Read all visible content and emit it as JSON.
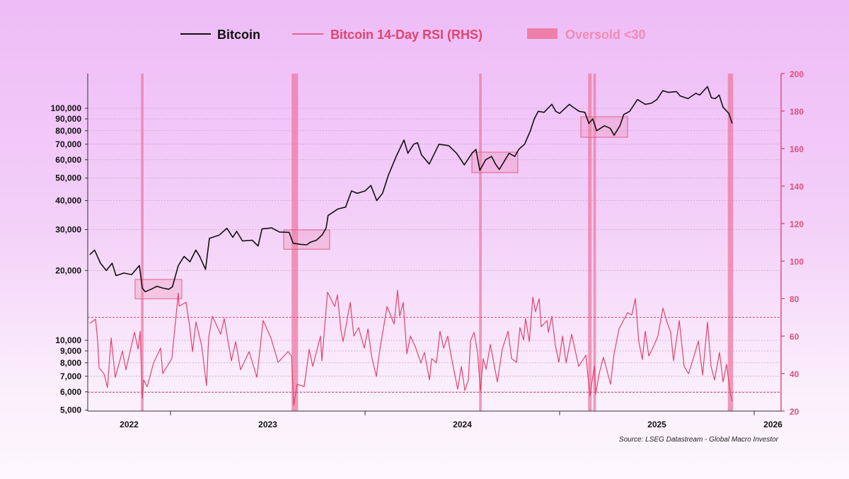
{
  "colors": {
    "bitcoin": "#111111",
    "rsi": "#e0456e",
    "oversold": "#ee7aa3",
    "axis_right": "#e0507a",
    "box_fill": "#f08ab0",
    "box_stroke": "#e0608a"
  },
  "legend": {
    "bitcoin": "Bitcoin",
    "rsi": "Bitcoin 14-Day RSI (RHS)",
    "oversold": "Oversold <30"
  },
  "source": "Source: LSEG Datastream - Global Macro Investor",
  "chart_data": {
    "type": "line",
    "title": "",
    "legend_position": "top",
    "x_axis": {
      "unit": "year",
      "range": [
        2022.57,
        2026.14
      ],
      "tick_marks": [
        2023,
        2024,
        2025,
        2026
      ],
      "tick_labels": [
        "2022",
        "2023",
        "2024",
        "2025",
        "2026"
      ]
    },
    "y_axis_left": {
      "scale": "log",
      "range": [
        5000,
        141000
      ],
      "tick_values": [
        5000,
        6000,
        7000,
        8000,
        9000,
        10000,
        20000,
        30000,
        40000,
        50000,
        60000,
        70000,
        80000,
        90000,
        100000
      ],
      "tick_labels": [
        "5,000",
        "6,000",
        "7,000",
        "8,000",
        "9,000",
        "10,000",
        "20,000",
        "30,000",
        "40,000",
        "50,000",
        "60,000",
        "70,000",
        "80,000",
        "90,000",
        "100,000"
      ]
    },
    "y_axis_right": {
      "scale": "linear",
      "range": [
        20,
        200
      ],
      "tick_labels": [
        "20",
        "40",
        "60",
        "80",
        "100",
        "120",
        "140",
        "160",
        "180",
        "200"
      ]
    },
    "reference_lines_rhs": [
      70,
      30
    ],
    "grid": "dotted horizontal at left-axis ticks",
    "series": [
      {
        "name": "Bitcoin",
        "axis": "left",
        "x": [
          2022.585,
          2022.61,
          2022.64,
          2022.67,
          2022.7,
          2022.72,
          2022.76,
          2022.8,
          2022.84,
          2022.855,
          2022.87,
          2022.9,
          2022.93,
          2022.96,
          2022.99,
          2023.01,
          2023.04,
          2023.07,
          2023.1,
          2023.13,
          2023.15,
          2023.18,
          2023.2,
          2023.25,
          2023.29,
          2023.32,
          2023.34,
          2023.37,
          2023.42,
          2023.45,
          2023.47,
          2023.52,
          2023.56,
          2023.61,
          2023.63,
          2023.67,
          2023.7,
          2023.72,
          2023.75,
          2023.78,
          2023.8,
          2023.81,
          2023.86,
          2023.9,
          2023.93,
          2023.96,
          2024.0,
          2024.03,
          2024.06,
          2024.09,
          2024.12,
          2024.16,
          2024.2,
          2024.22,
          2024.25,
          2024.27,
          2024.29,
          2024.33,
          2024.38,
          2024.43,
          2024.47,
          2024.49,
          2024.51,
          2024.55,
          2024.57,
          2024.59,
          2024.62,
          2024.65,
          2024.67,
          2024.69,
          2024.72,
          2024.74,
          2024.77,
          2024.79,
          2024.82,
          2024.85,
          2024.87,
          2024.89,
          2024.92,
          2024.94,
          2024.96,
          2024.98,
          2025.0,
          2025.05,
          2025.07,
          2025.1,
          2025.13,
          2025.15,
          2025.17,
          2025.19,
          2025.23,
          2025.26,
          2025.28,
          2025.31,
          2025.33,
          2025.36,
          2025.4,
          2025.44,
          2025.47,
          2025.5,
          2025.53,
          2025.56,
          2025.6,
          2025.62,
          2025.66,
          2025.7,
          2025.72,
          2025.76,
          2025.78,
          2025.8,
          2025.82,
          2025.84,
          2025.87,
          2025.887
        ],
        "values": [
          23400,
          24500,
          21500,
          20000,
          21500,
          19000,
          19500,
          19200,
          21000,
          16800,
          16200,
          16600,
          17100,
          16800,
          16600,
          17000,
          21000,
          23000,
          21800,
          24500,
          23000,
          20200,
          27500,
          28400,
          30400,
          27800,
          29500,
          26800,
          27000,
          25500,
          30200,
          30500,
          29300,
          29200,
          26200,
          25900,
          25800,
          26500,
          27000,
          28500,
          30500,
          34500,
          36800,
          37500,
          44000,
          43000,
          44000,
          46500,
          40000,
          43000,
          51500,
          62000,
          73000,
          64000,
          70000,
          71000,
          63000,
          57500,
          70000,
          69000,
          64000,
          60500,
          57000,
          64000,
          66500,
          54000,
          60000,
          62000,
          57500,
          54500,
          60000,
          64000,
          62000,
          66500,
          70000,
          80000,
          90000,
          97000,
          96000,
          100000,
          104000,
          97000,
          95000,
          104000,
          101000,
          97000,
          96000,
          86000,
          90000,
          80000,
          84000,
          82000,
          76500,
          84000,
          94000,
          97000,
          109000,
          104000,
          105000,
          109000,
          119000,
          117000,
          118000,
          113000,
          110000,
          116000,
          114000,
          124000,
          111000,
          110000,
          114000,
          101000,
          95000,
          86000
        ]
      },
      {
        "name": "Bitcoin 14-Day RSI (RHS)",
        "axis": "right",
        "x": [
          2022.585,
          2022.615,
          2022.625,
          2022.633,
          2022.658,
          2022.676,
          2022.695,
          2022.716,
          2022.753,
          2022.771,
          2022.815,
          2022.833,
          2022.844,
          2022.855,
          2022.862,
          2022.88,
          2022.913,
          2022.949,
          2022.96,
          2023.007,
          2023.04,
          2023.044,
          2023.08,
          2023.098,
          2023.113,
          2023.131,
          2023.16,
          2023.185,
          2023.196,
          2023.215,
          2023.258,
          2023.276,
          2023.313,
          2023.335,
          2023.36,
          2023.404,
          2023.444,
          2023.476,
          2023.516,
          2023.553,
          2023.604,
          2023.622,
          2023.633,
          2023.651,
          2023.687,
          2023.713,
          2023.731,
          2023.771,
          2023.778,
          2023.807,
          2023.844,
          2023.858,
          2023.876,
          2023.887,
          2023.924,
          2023.942,
          2023.967,
          2023.996,
          2024.015,
          2024.033,
          2024.058,
          2024.076,
          2024.113,
          2024.149,
          2024.167,
          2024.178,
          2024.196,
          2024.215,
          2024.233,
          2024.258,
          2024.287,
          2024.305,
          2024.331,
          2024.342,
          2024.367,
          2024.385,
          2024.404,
          2024.425,
          2024.44,
          2024.476,
          2024.495,
          2024.513,
          2024.531,
          2024.542,
          2024.56,
          2024.578,
          2024.593,
          2024.607,
          2024.622,
          2024.644,
          2024.68,
          2024.705,
          2024.735,
          2024.753,
          2024.778,
          2024.796,
          2024.815,
          2024.825,
          2024.844,
          2024.862,
          2024.876,
          2024.895,
          2024.905,
          2024.935,
          2024.942,
          2024.96,
          2024.978,
          2024.996,
          2025.015,
          2025.033,
          2025.062,
          2025.098,
          2025.135,
          2025.156,
          2025.178,
          2025.185,
          2025.204,
          2025.225,
          2025.262,
          2025.28,
          2025.305,
          2025.349,
          2025.371,
          2025.389,
          2025.407,
          2025.425,
          2025.44,
          2025.458,
          2025.487,
          2025.505,
          2025.531,
          2025.549,
          2025.571,
          2025.585,
          2025.615,
          2025.64,
          2025.662,
          2025.687,
          2025.713,
          2025.735,
          2025.76,
          2025.778,
          2025.796,
          2025.822,
          2025.84,
          2025.858,
          2025.876,
          2025.887
        ],
        "values": [
          66.8,
          69,
          58,
          43,
          40,
          32.5,
          59,
          38,
          52,
          42,
          62,
          53,
          62.6,
          26.8,
          36.6,
          33,
          45.7,
          53.6,
          40,
          48,
          83,
          76,
          78,
          65.7,
          51.7,
          67.5,
          55,
          33.6,
          59,
          70.6,
          61,
          69.4,
          46.8,
          57,
          42,
          51.7,
          38,
          68.3,
          59,
          46,
          51.7,
          49.4,
          23,
          34.3,
          33,
          53,
          43.8,
          60,
          46.8,
          83.4,
          75.8,
          82,
          63,
          57,
          78,
          60,
          64.5,
          53.6,
          63.8,
          49.4,
          38.5,
          53,
          75.8,
          66.4,
          84.5,
          70.6,
          78,
          50.6,
          60,
          54.3,
          45.7,
          51.3,
          36.6,
          48,
          45.7,
          62.6,
          53.6,
          60,
          50.6,
          31.7,
          43.8,
          31,
          36.6,
          57.4,
          62,
          51.7,
          30.6,
          48,
          42.3,
          55.5,
          35.5,
          53,
          62.6,
          48,
          46,
          64.5,
          58,
          69.4,
          57,
          80.8,
          73,
          80,
          65,
          68.3,
          62,
          70.6,
          55,
          46,
          60,
          45.7,
          61,
          43.8,
          49.8,
          28,
          44,
          29,
          40.4,
          48.7,
          34.3,
          50.6,
          63.8,
          72.5,
          71.3,
          80,
          57,
          47.5,
          62.6,
          49.4,
          55.5,
          60,
          75,
          68.3,
          62,
          46.8,
          68.3,
          43.8,
          40,
          48,
          57.4,
          39.2,
          67.5,
          43.8,
          36.6,
          51.3,
          35.5,
          45,
          30.6,
          25.3
        ]
      }
    ],
    "oversold_periods": [
      [
        2022.852,
        2022.858
      ],
      [
        2023.626,
        2023.652
      ],
      [
        2024.59,
        2024.596
      ],
      [
        2025.15,
        2025.161
      ],
      [
        2025.177,
        2025.183
      ],
      [
        2025.868,
        2025.888
      ]
    ],
    "highlight_boxes": [
      {
        "x": [
          2022.818,
          2023.058
        ],
        "y": [
          15100,
          18300
        ]
      },
      {
        "x": [
          2023.582,
          2023.818
        ],
        "y": [
          24700,
          29900
        ]
      },
      {
        "x": [
          2024.549,
          2024.785
        ],
        "y": [
          52800,
          64700
        ]
      },
      {
        "x": [
          2025.109,
          2025.349
        ],
        "y": [
          75000,
          91900
        ]
      }
    ]
  }
}
